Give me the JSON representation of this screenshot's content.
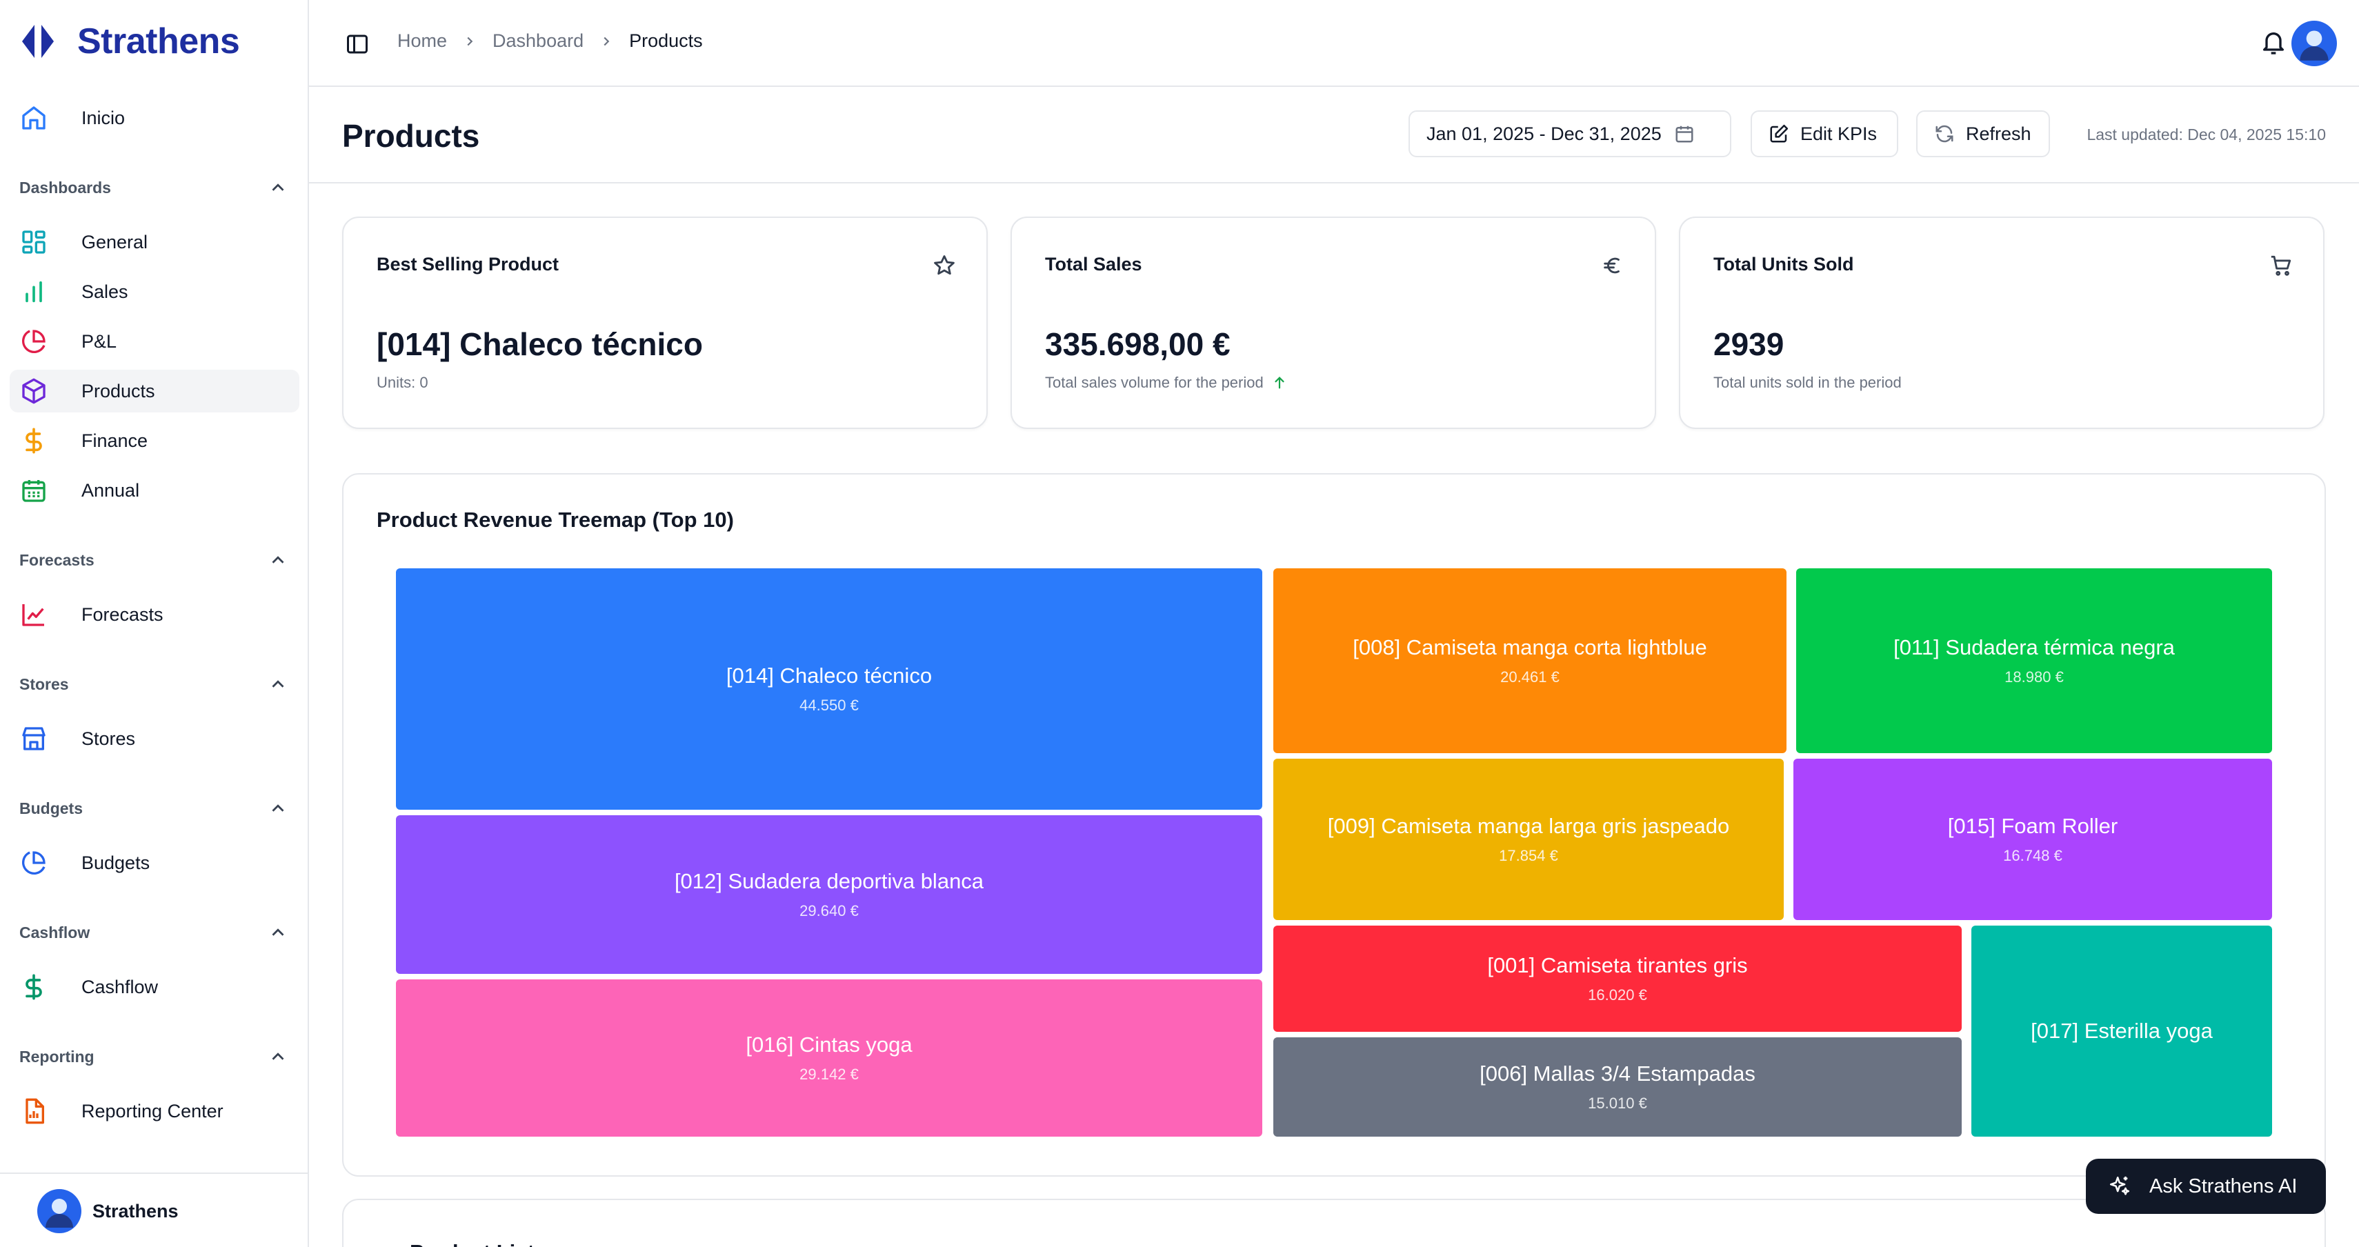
{
  "app": {
    "brand": "Strathens"
  },
  "sidebar": {
    "inicio": "Inicio",
    "sections": {
      "dashboards": "Dashboards",
      "forecasts": "Forecasts",
      "stores": "Stores",
      "budgets": "Budgets",
      "cashflow": "Cashflow",
      "reporting": "Reporting"
    },
    "items": {
      "general": "General",
      "sales": "Sales",
      "pl": "P&L",
      "products": "Products",
      "finance": "Finance",
      "annual": "Annual",
      "forecasts": "Forecasts",
      "stores": "Stores",
      "budgets": "Budgets",
      "cashflow": "Cashflow",
      "reporting_center": "Reporting Center"
    },
    "user_name": "Strathens"
  },
  "breadcrumb": [
    "Home",
    "Dashboard",
    "Products"
  ],
  "header": {
    "title": "Products",
    "date_range": "Jan 01, 2025 - Dec 31, 2025",
    "edit_kpis": "Edit KPIs",
    "refresh": "Refresh",
    "last_updated": "Last updated: Dec 04, 2025 15:10"
  },
  "kpis": {
    "best": {
      "title": "Best Selling Product",
      "value": "[014] Chaleco técnico",
      "sub": "Units: 0"
    },
    "sales": {
      "title": "Total Sales",
      "value": "335.698,00 €",
      "sub": "Total sales volume for the period"
    },
    "units": {
      "title": "Total Units Sold",
      "value": "2939",
      "sub": "Total units sold in the period"
    }
  },
  "treemap": {
    "title": "Product Revenue Treemap (Top 10)",
    "tiles": [
      {
        "name": "[014] Chaleco técnico",
        "value": "44.550 €",
        "color": "#2b7bfb"
      },
      {
        "name": "[012] Sudadera deportiva blanca",
        "value": "29.640 €",
        "color": "#8d52fe"
      },
      {
        "name": "[016] Cintas yoga",
        "value": "29.142 €",
        "color": "#fd64b7"
      },
      {
        "name": "[008] Camiseta manga corta lightblue",
        "value": "20.461 €",
        "color": "#fe8906"
      },
      {
        "name": "[011] Sudadera térmica negra",
        "value": "18.980 €",
        "color": "#02c94c"
      },
      {
        "name": "[009] Camiseta manga larga gris jaspeado",
        "value": "17.854 €",
        "color": "#efb200"
      },
      {
        "name": "[015] Foam Roller",
        "value": "16.748 €",
        "color": "#ab44fe"
      },
      {
        "name": "[001] Camiseta tirantes gris",
        "value": "16.020 €",
        "color": "#fe2a3c"
      },
      {
        "name": "[006] Mallas 3/4 Estampadas",
        "value": "15.010 €",
        "color": "#6a7282"
      },
      {
        "name": "[017] Esterilla yoga",
        "value": "",
        "color": "#00bba7"
      }
    ]
  },
  "product_list_title": "Product List",
  "ask_ai": "Ask Strathens AI"
}
